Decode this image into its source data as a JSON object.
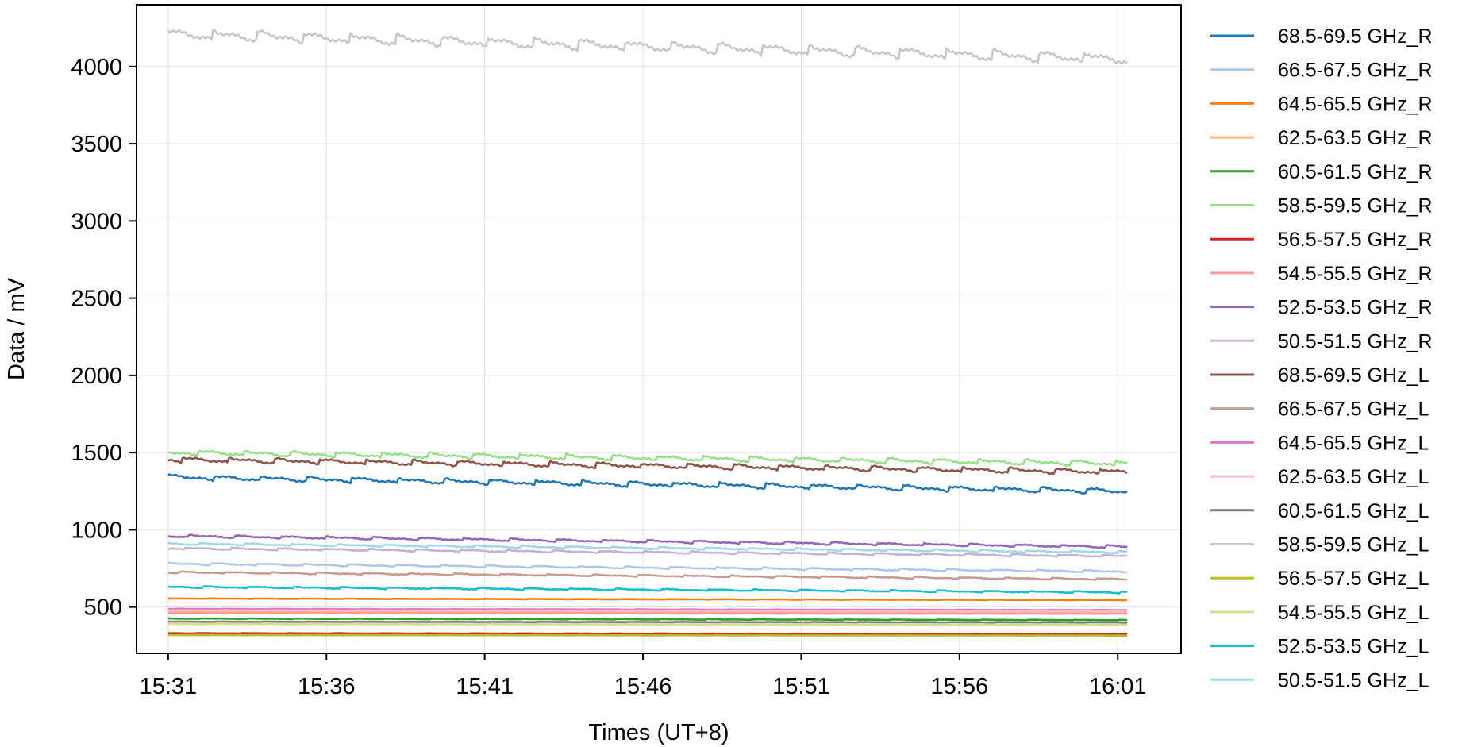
{
  "chart_data": {
    "type": "line",
    "title": "",
    "xlabel": "Times (UT+8)",
    "ylabel": "Data / mV",
    "x_ticks": [
      "15:31",
      "15:36",
      "15:41",
      "15:46",
      "15:51",
      "15:56",
      "16:01"
    ],
    "x_start": "15:31",
    "x_end": "16:01",
    "xlim": [
      "15:30",
      "16:03"
    ],
    "ylim": [
      200,
      4400
    ],
    "y_ticks": [
      500,
      1000,
      1500,
      2000,
      2500,
      3000,
      3500,
      4000
    ],
    "grid": true,
    "legend_position": "outside right",
    "series": [
      {
        "name": "68.5-69.5 GHz_R",
        "color": "#1f77b4",
        "start": 1340,
        "end": 1250,
        "ripple": 30
      },
      {
        "name": "66.5-67.5 GHz_R",
        "color": "#aec7e8",
        "start": 780,
        "end": 730,
        "ripple": 12
      },
      {
        "name": "64.5-65.5 GHz_R",
        "color": "#ff7f0e",
        "start": 555,
        "end": 545,
        "ripple": 2
      },
      {
        "name": "62.5-63.5 GHz_R",
        "color": "#ffbb78",
        "start": 470,
        "end": 468,
        "ripple": 2
      },
      {
        "name": "60.5-61.5 GHz_R",
        "color": "#2ca02c",
        "start": 425,
        "end": 415,
        "ripple": 3
      },
      {
        "name": "58.5-59.5 GHz_R",
        "color": "#98df8a",
        "start": 1500,
        "end": 1430,
        "ripple": 30
      },
      {
        "name": "56.5-57.5 GHz_R",
        "color": "#d62728",
        "start": 330,
        "end": 325,
        "ripple": 2
      },
      {
        "name": "54.5-55.5 GHz_R",
        "color": "#ff9896",
        "start": 460,
        "end": 456,
        "ripple": 2
      },
      {
        "name": "52.5-53.5 GHz_R",
        "color": "#9467bd",
        "start": 960,
        "end": 890,
        "ripple": 15
      },
      {
        "name": "50.5-51.5 GHz_R",
        "color": "#c5b0d5",
        "start": 880,
        "end": 830,
        "ripple": 12
      },
      {
        "name": "68.5-69.5 GHz_L",
        "color": "#8c564b",
        "start": 1455,
        "end": 1375,
        "ripple": 30
      },
      {
        "name": "66.5-67.5 GHz_L",
        "color": "#c49c94",
        "start": 725,
        "end": 680,
        "ripple": 10
      },
      {
        "name": "64.5-65.5 GHz_L",
        "color": "#e377c2",
        "start": 488,
        "end": 480,
        "ripple": 2
      },
      {
        "name": "62.5-63.5 GHz_L",
        "color": "#f7b6d2",
        "start": 478,
        "end": 472,
        "ripple": 2
      },
      {
        "name": "60.5-61.5 GHz_L",
        "color": "#7f7f7f",
        "start": 405,
        "end": 400,
        "ripple": 2
      },
      {
        "name": "58.5-59.5 GHz_L",
        "color": "#c7c7c7",
        "start": 4210,
        "end": 4050,
        "ripple": 60
      },
      {
        "name": "56.5-57.5 GHz_L",
        "color": "#bcbd22",
        "start": 318,
        "end": 315,
        "ripple": 1
      },
      {
        "name": "54.5-55.5 GHz_L",
        "color": "#dbdb8d",
        "start": 390,
        "end": 385,
        "ripple": 2
      },
      {
        "name": "52.5-53.5 GHz_L",
        "color": "#17becf",
        "start": 630,
        "end": 595,
        "ripple": 10
      },
      {
        "name": "50.5-51.5 GHz_L",
        "color": "#9edae5",
        "start": 910,
        "end": 855,
        "ripple": 12
      }
    ]
  }
}
